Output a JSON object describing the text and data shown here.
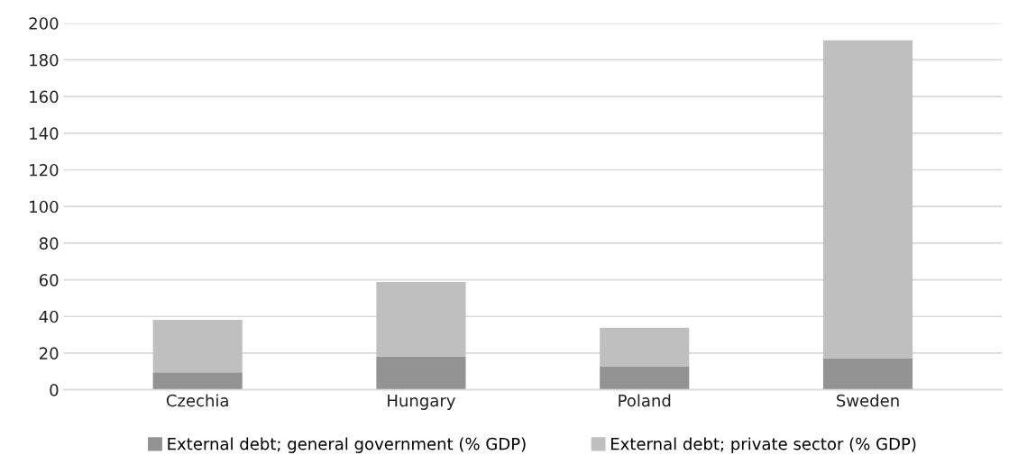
{
  "chart_data": {
    "type": "bar",
    "stacked": true,
    "categories": [
      "Czechia",
      "Hungary",
      "Poland",
      "Sweden"
    ],
    "series": [
      {
        "name": "External debt; general government (% GDP)",
        "color": "#939393",
        "values": [
          9.5,
          18.1,
          12.8,
          17.2
        ]
      },
      {
        "name": "External debt; private sector (% GDP)",
        "color": "#bfbfbf",
        "values": [
          28.7,
          40.7,
          21.0,
          173.5
        ]
      }
    ],
    "ylim": [
      0,
      200
    ],
    "yticks": [
      0,
      20,
      40,
      60,
      80,
      100,
      120,
      140,
      160,
      180,
      200
    ],
    "grid": "y",
    "legend": "bottom"
  }
}
